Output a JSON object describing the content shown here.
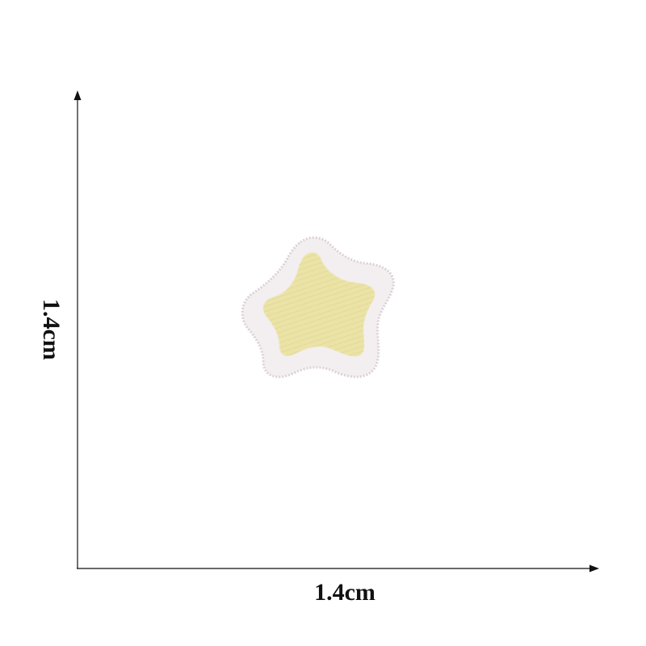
{
  "dimensions": {
    "width_label": "1.4cm",
    "height_label": "1.4cm"
  },
  "patch": {
    "shape": "star",
    "icon": "star-patch-icon",
    "fill_color": "#ebe3a6",
    "fill_shade": "#d8cd86",
    "border_color": "#f3eff0",
    "border_shade": "#dcd2d4"
  },
  "colors": {
    "background": "#ffffff",
    "axis": "#111111"
  }
}
